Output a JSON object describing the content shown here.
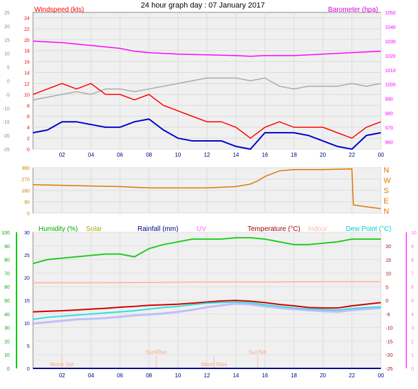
{
  "title": "24 hour graph day : 07 January 2017",
  "chart_data": [
    {
      "type": "line",
      "title": "24 hour graph day : 07 January 2017",
      "left_label": "Windspeed (kts)",
      "right_label": "Barometer (hpa)",
      "x_ticks": [
        "02",
        "04",
        "06",
        "08",
        "10",
        "12",
        "14",
        "16",
        "18",
        "20",
        "22",
        "00"
      ],
      "x_range_hours": [
        0,
        24
      ],
      "outer_left_ticks": [
        "25",
        "20",
        "15",
        "10",
        "5",
        "0",
        "-5",
        "-10",
        "-15",
        "-20",
        "-25"
      ],
      "outer_left_range": [
        -25,
        25
      ],
      "y_ticks": [
        "24",
        "22",
        "20",
        "18",
        "16",
        "14",
        "12",
        "10",
        "8",
        "6",
        "4",
        "2",
        "0"
      ],
      "ylim": [
        0,
        25
      ],
      "y2_ticks": [
        "1050",
        "1040",
        "1030",
        "1020",
        "1010",
        "1000",
        "990",
        "980",
        "970",
        "960"
      ],
      "y2lim": [
        955,
        1050
      ],
      "grid": true,
      "colors": {
        "windspeed": "#ff0000",
        "avg": "#0000cc",
        "gust": "#aaaaaa",
        "barometer": "#ff00ff"
      },
      "series": [
        {
          "name": "Barometer",
          "axis": "right",
          "color": "#ff00ff",
          "x": [
            0,
            2,
            4,
            6,
            7,
            8,
            10,
            12,
            14,
            15,
            16,
            18,
            20,
            22,
            24
          ],
          "y": [
            1030,
            1029,
            1027,
            1025,
            1023,
            1022,
            1021,
            1020.5,
            1020,
            1019.5,
            1020,
            1020,
            1021,
            1022,
            1023
          ]
        },
        {
          "name": "Gust",
          "axis": "outer",
          "color": "#aaaaaa",
          "x": [
            0,
            1,
            2,
            3,
            4,
            5,
            6,
            7,
            8,
            9,
            10,
            11,
            12,
            13,
            14,
            15,
            16,
            17,
            18,
            19,
            20,
            21,
            22,
            23,
            24
          ],
          "y": [
            -7,
            -6,
            -5,
            -4,
            -5,
            -3,
            -3,
            -4,
            -3,
            -2,
            -1,
            0,
            1,
            1,
            1,
            0,
            1,
            -2,
            -3,
            -2,
            -2,
            -2,
            -1,
            -2,
            -1
          ]
        },
        {
          "name": "Wind Speed",
          "axis": "left",
          "color": "#ff0000",
          "x": [
            0,
            1,
            2,
            3,
            4,
            5,
            6,
            7,
            8,
            9,
            10,
            11,
            12,
            13,
            14,
            15,
            16,
            17,
            18,
            19,
            20,
            21,
            22,
            23,
            24
          ],
          "y": [
            10,
            11,
            12,
            11,
            12,
            10,
            10,
            9,
            10,
            8,
            7,
            6,
            5,
            5,
            4,
            2,
            4,
            5,
            4,
            4,
            4,
            3,
            2,
            4,
            5
          ]
        },
        {
          "name": "Avg Wind",
          "axis": "left",
          "color": "#0000cc",
          "x": [
            0,
            1,
            2,
            3,
            4,
            5,
            6,
            7,
            8,
            9,
            10,
            11,
            12,
            13,
            14,
            15,
            16,
            17,
            18,
            19,
            20,
            21,
            22,
            23,
            24
          ],
          "y": [
            3,
            3.5,
            5,
            5,
            4.5,
            4,
            4,
            5,
            5.5,
            3.5,
            2,
            1.5,
            1.5,
            1.5,
            0.5,
            0,
            3,
            3,
            3,
            2.5,
            1.5,
            0.5,
            0,
            2.5,
            3
          ]
        }
      ]
    },
    {
      "type": "line",
      "x_range_hours": [
        0,
        24
      ],
      "y_ticks": [
        "360",
        "270",
        "180",
        "90",
        "0"
      ],
      "ylim": [
        0,
        360
      ],
      "y2_ticks": [
        "N",
        "W",
        "S",
        "E",
        "N"
      ],
      "grid": true,
      "series": [
        {
          "name": "Wind Direction",
          "color": "#dd7700",
          "x": [
            0,
            2,
            4,
            6,
            8,
            10,
            12,
            14,
            15,
            15.5,
            16,
            17,
            18,
            20,
            22,
            22.1,
            23,
            24
          ],
          "y": [
            225,
            220,
            215,
            210,
            200,
            200,
            200,
            210,
            230,
            255,
            290,
            335,
            345,
            345,
            350,
            65,
            50,
            35
          ]
        }
      ]
    },
    {
      "type": "line",
      "legend": [
        {
          "label": "Humidity (%)",
          "color": "#00aa00"
        },
        {
          "label": "Solar",
          "color": "#aaaa00"
        },
        {
          "label": "Rainfall (mm)",
          "color": "#000088"
        },
        {
          "label": "UV",
          "color": "#ff66ff"
        },
        {
          "label": "Temperature (°C)",
          "color": "#aa0000"
        },
        {
          "label": "Indoor",
          "color": "#ffbbaa"
        },
        {
          "label": "Dew Point (°C)",
          "color": "#00cccc"
        }
      ],
      "x_ticks": [
        "02",
        "04",
        "06",
        "08",
        "10",
        "12",
        "14",
        "16",
        "18",
        "20",
        "22",
        "00"
      ],
      "x_range_hours": [
        0,
        24
      ],
      "outer_left_ticks": [
        "100",
        "90",
        "80",
        "70",
        "60",
        "50",
        "40",
        "30",
        "20",
        "10",
        "0"
      ],
      "left2_ticks": [
        "30",
        "25",
        "20",
        "15",
        "10",
        "5",
        "0"
      ],
      "right_ticks": [
        "20",
        "15",
        "10",
        "5",
        "0",
        "-5",
        "-10",
        "-15",
        "-20",
        "-25"
      ],
      "right2_ticks": [
        "10",
        "9",
        "8",
        "7",
        "6",
        "5",
        "4",
        "3",
        "2",
        "1",
        "0"
      ],
      "annotations": [
        "Moon Set",
        "SunRise",
        "Moon Rise",
        "SunSet"
      ],
      "grid": true,
      "series": [
        {
          "name": "Humidity",
          "axis": "humidity",
          "color": "#22cc22",
          "x": [
            0,
            1,
            2,
            3,
            4,
            5,
            6,
            7,
            8,
            9,
            10,
            11,
            12,
            13,
            14,
            15,
            16,
            17,
            18,
            19,
            20,
            21,
            22,
            23,
            24
          ],
          "y": [
            77,
            80,
            81,
            82,
            83,
            84,
            84,
            82,
            88,
            91,
            93,
            95,
            95,
            95,
            96,
            96,
            95,
            93,
            91,
            91,
            92,
            93,
            95,
            95,
            95
          ]
        },
        {
          "name": "Indoor",
          "axis": "temperature",
          "color": "#ffbbaa",
          "x": [
            0,
            4,
            8,
            12,
            16,
            20,
            24
          ],
          "y": [
            6.5,
            6.5,
            6.6,
            6.8,
            6.8,
            6.9,
            6.9
          ]
        },
        {
          "name": "Temperature",
          "axis": "temperature",
          "color": "#cc0000",
          "x": [
            0,
            1,
            2,
            3,
            4,
            5,
            6,
            7,
            8,
            9,
            10,
            11,
            12,
            13,
            14,
            15,
            16,
            17,
            18,
            19,
            20,
            21,
            22,
            23,
            24
          ],
          "y": [
            -4.2,
            -4,
            -3.8,
            -3.5,
            -3.2,
            -2.9,
            -2.5,
            -2.2,
            -1.8,
            -1.6,
            -1.4,
            -1,
            -0.6,
            -0.2,
            0,
            -0.3,
            -0.8,
            -1.5,
            -2,
            -2.6,
            -2.8,
            -2.8,
            -2,
            -1.4,
            -0.8
          ]
        },
        {
          "name": "Dew Point",
          "axis": "temperature",
          "color": "#33dddd",
          "x": [
            0,
            1,
            2,
            3,
            4,
            5,
            6,
            7,
            8,
            9,
            10,
            11,
            12,
            13,
            14,
            15,
            16,
            17,
            18,
            19,
            20,
            21,
            22,
            23,
            24
          ],
          "y": [
            -7,
            -6.2,
            -5.8,
            -5.4,
            -5,
            -4.6,
            -4.2,
            -3.8,
            -3.2,
            -2.6,
            -2.2,
            -1.6,
            -1,
            -0.8,
            -0.6,
            -0.9,
            -1.6,
            -2.2,
            -2.8,
            -3.2,
            -3.4,
            -3.6,
            -3,
            -2.6,
            -2.4
          ]
        },
        {
          "name": "Wind Chill",
          "axis": "temperature",
          "color": "#aaaaff",
          "x": [
            0,
            1,
            2,
            3,
            4,
            5,
            6,
            7,
            8,
            9,
            10,
            11,
            12,
            13,
            14,
            15,
            16,
            17,
            18,
            19,
            20,
            21,
            22,
            23,
            24
          ],
          "y": [
            -8.5,
            -8,
            -7.5,
            -7,
            -6.8,
            -6.5,
            -6,
            -5.5,
            -5.2,
            -4.8,
            -4.2,
            -3.5,
            -2.5,
            -1.8,
            -1.2,
            -1.5,
            -2.2,
            -2.8,
            -3.2,
            -3.6,
            -4,
            -4.2,
            -3.6,
            -3.2,
            -2.8
          ]
        },
        {
          "name": "Rainfall",
          "axis": "rain",
          "color": "#000088",
          "x": [
            0,
            24
          ],
          "y": [
            0,
            0
          ]
        }
      ]
    }
  ]
}
